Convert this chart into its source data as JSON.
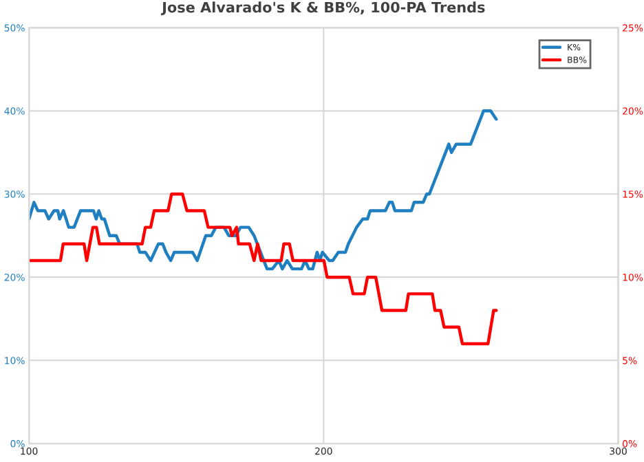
{
  "chart_data": {
    "type": "line",
    "title": "Jose Alvarado's K & BB%, 100-PA Trends",
    "xlim": [
      100,
      300
    ],
    "xticks": [
      100,
      200,
      300
    ],
    "ylim": [
      0,
      50
    ],
    "yticks": [
      {
        "value": 0,
        "label": "0%"
      },
      {
        "value": 10,
        "label": "10%"
      },
      {
        "value": 20,
        "label": "20%"
      },
      {
        "value": 30,
        "label": "30%"
      },
      {
        "value": 40,
        "label": "40%"
      },
      {
        "value": 50,
        "label": "50%"
      }
    ],
    "y2lim": [
      0,
      25
    ],
    "y2ticks": [
      {
        "value": 0,
        "label": "0%"
      },
      {
        "value": 5,
        "label": "5%"
      },
      {
        "value": 10,
        "label": "10%"
      },
      {
        "value": 15,
        "label": "15%"
      },
      {
        "value": 20,
        "label": "20%"
      },
      {
        "value": 25,
        "label": "25%"
      }
    ],
    "grid": true,
    "legend": "top right",
    "marker": "none",
    "line_style": "solid",
    "series": [
      {
        "name": "K%",
        "color": "#1f7fc0",
        "x": [
          100,
          101.7,
          103,
          105.4,
          106.7,
          108.5,
          109.8,
          110.4,
          111.7,
          113.5,
          115.3,
          117.5,
          121.9,
          122.8,
          123.7,
          124.7,
          125.6,
          127.4,
          129.6,
          130.8,
          136.7,
          137.6,
          139.5,
          141.3,
          143.9,
          145.4,
          146.5,
          148.1,
          149.3,
          155.5,
          157.1,
          160,
          161.9,
          163.4,
          166.2,
          167.8,
          170.2,
          171.8,
          174.6,
          176.4,
          180.8,
          182.6,
          184.8,
          186,
          187.6,
          189.4,
          192.5,
          193.7,
          195,
          196.3,
          197.8,
          198.7,
          199.6,
          201.9,
          203.1,
          205,
          207.4,
          208.4,
          211.2,
          213.3,
          214.9,
          215.8,
          221,
          222.3,
          223.3,
          224.2,
          229.8,
          230.7,
          233.8,
          235,
          235.9,
          242.5,
          243.4,
          245,
          249.9,
          254.3,
          256.7,
          258.6
        ],
        "values": [
          27,
          29,
          28,
          28,
          27,
          28,
          28,
          27,
          28,
          26,
          26,
          28,
          28,
          27,
          28,
          27,
          27,
          25,
          25,
          24,
          24,
          23,
          23,
          22,
          24,
          24,
          23,
          22,
          23,
          23,
          22,
          25,
          25,
          26,
          26,
          25,
          25,
          26,
          26,
          25,
          21,
          21,
          22,
          21,
          22,
          21,
          21,
          22,
          21,
          21,
          23,
          22,
          23,
          22,
          22,
          23,
          23,
          24,
          26,
          27,
          27,
          28,
          28,
          29,
          29,
          28,
          28,
          29,
          29,
          30,
          30,
          36,
          35,
          36,
          36,
          40,
          40,
          39
        ]
      },
      {
        "name": "BB%",
        "color": "#ff0000",
        "axis": "y2",
        "x": [
          100,
          110.7,
          111.6,
          118.7,
          119.6,
          121.7,
          122.9,
          123.9,
          138.4,
          139.5,
          141.3,
          142.5,
          147.2,
          148.4,
          152.1,
          153.6,
          159.5,
          160.8,
          168.2,
          168.9,
          170.5,
          171.1,
          174.9,
          176.4,
          177.6,
          178.8,
          185.6,
          186.5,
          188.4,
          189.6,
          200.1,
          201.2,
          208.7,
          210,
          213.8,
          214.9,
          217.7,
          219.8,
          227.9,
          228.8,
          236.9,
          237.8,
          239.7,
          240.9,
          245.9,
          247.1,
          255.8,
          257.7,
          258.6
        ],
        "values": [
          11,
          11,
          12,
          12,
          11,
          13,
          13,
          12,
          12,
          13,
          13,
          14,
          14,
          15,
          15,
          14,
          14,
          13,
          13,
          12.5,
          13,
          12,
          12,
          11,
          12,
          11,
          11,
          12,
          12,
          11,
          11,
          10,
          10,
          9,
          9,
          10,
          10,
          8,
          8,
          9,
          9,
          8,
          8,
          7,
          7,
          6,
          6,
          8,
          8
        ]
      }
    ]
  }
}
